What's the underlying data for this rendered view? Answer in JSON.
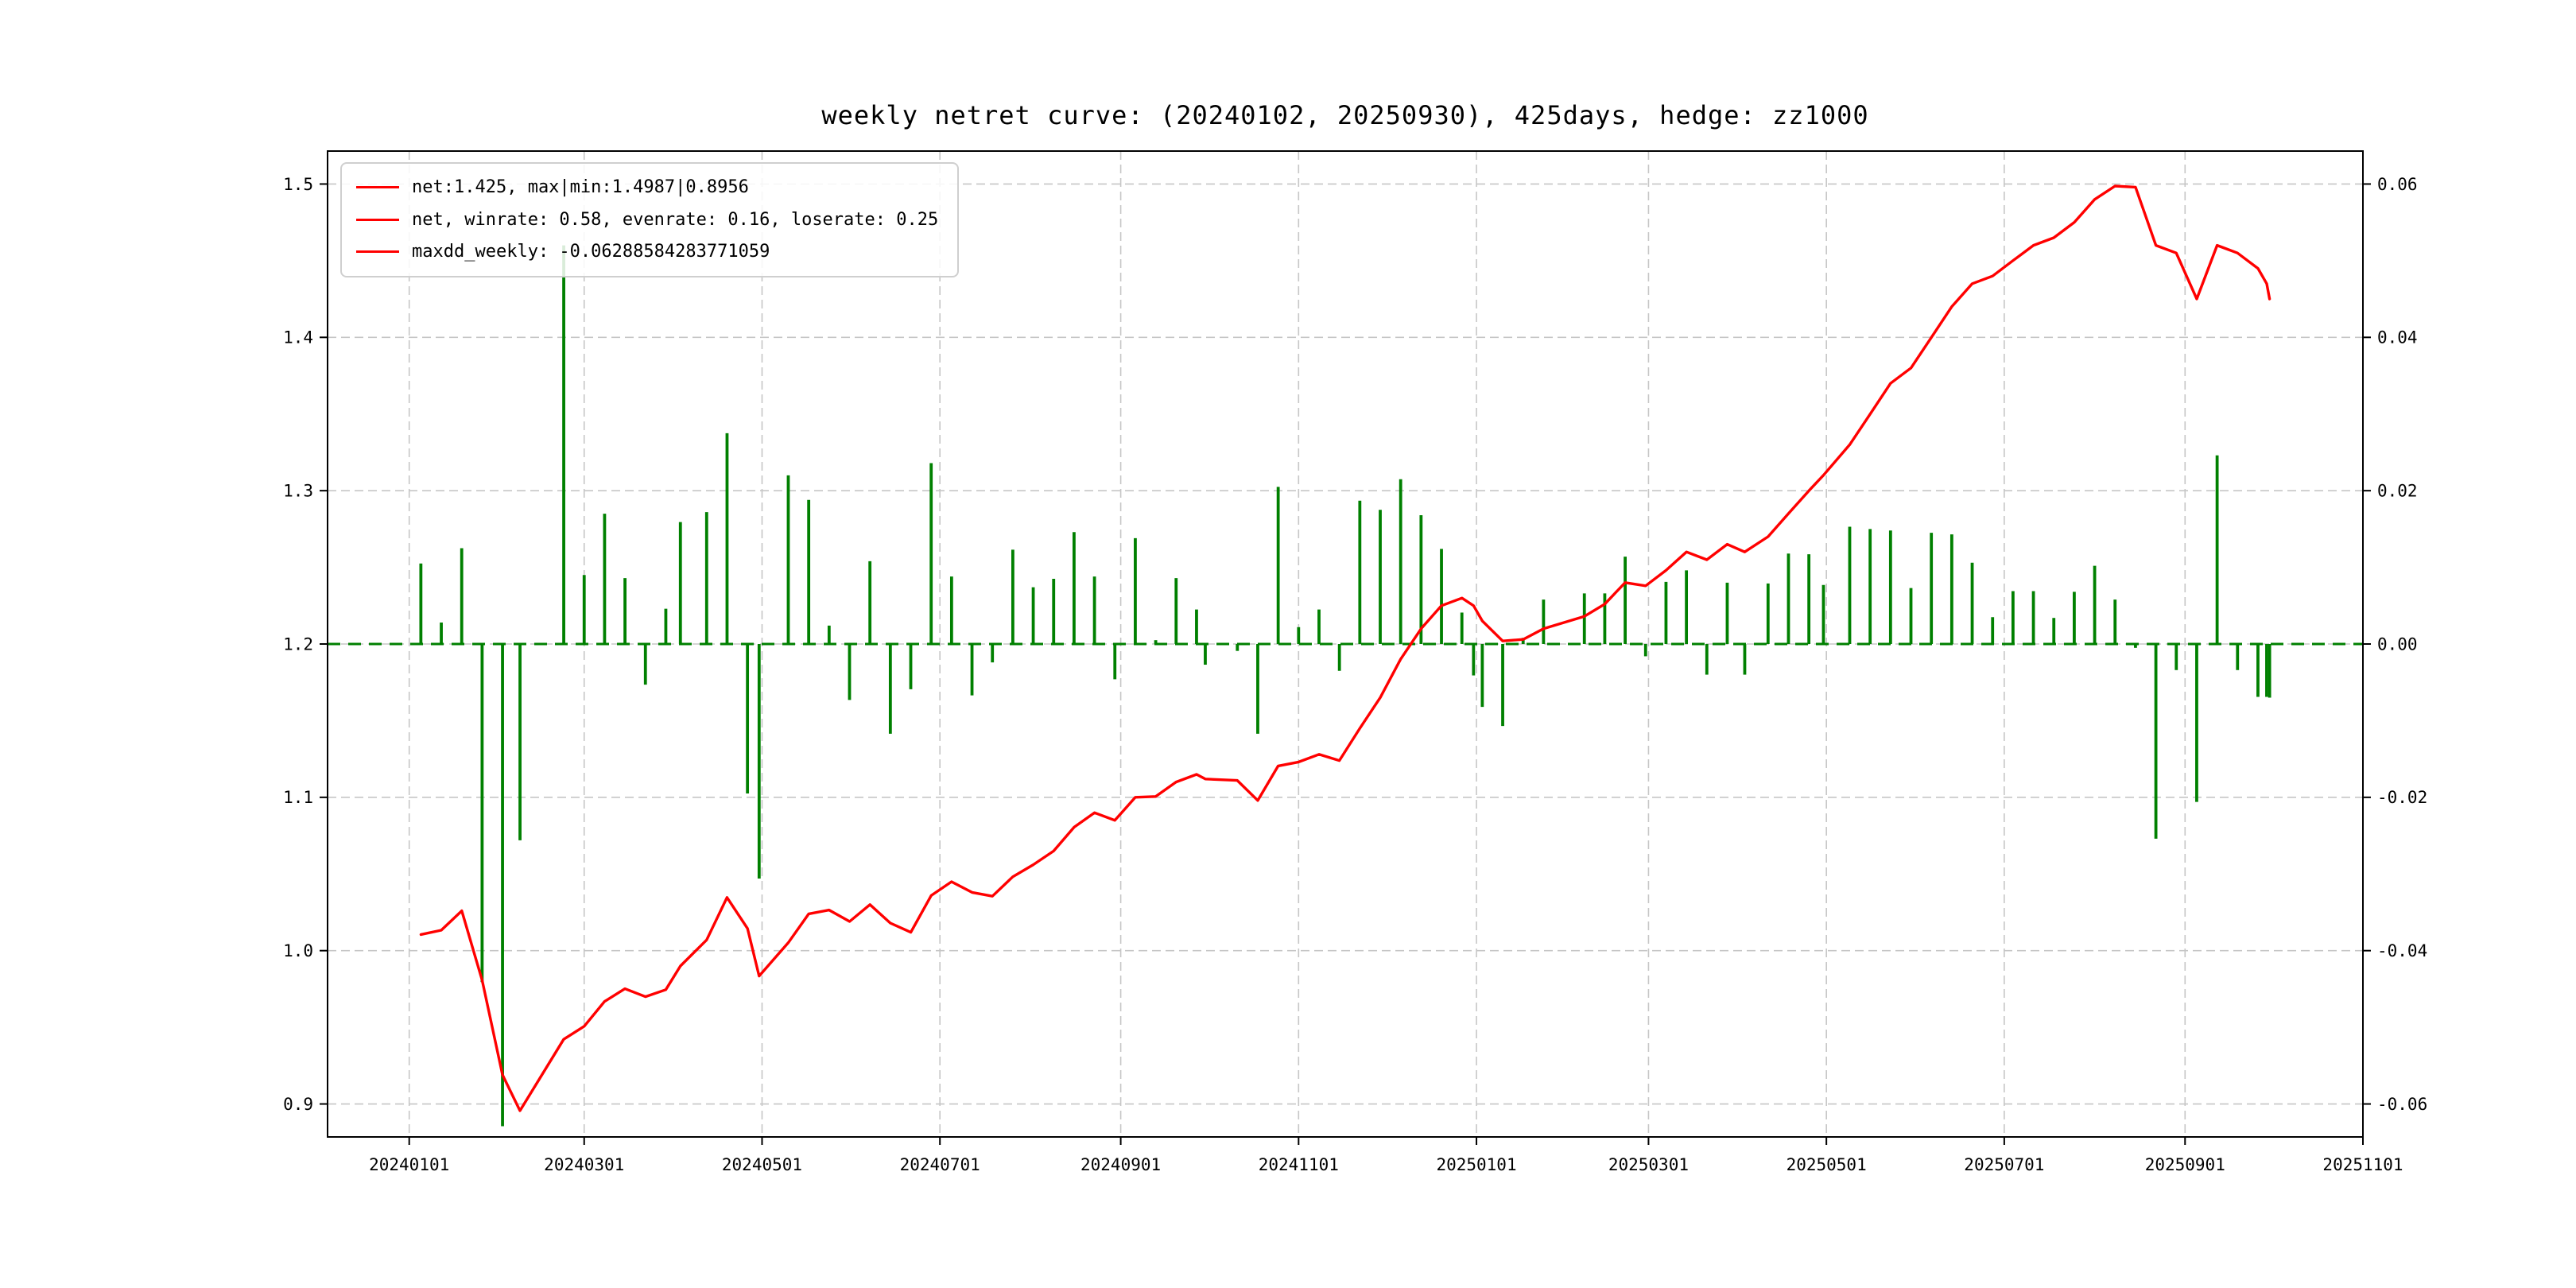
{
  "legend": {
    "items": [
      {
        "label": "net:1.425, max|min:1.4987|0.8956"
      },
      {
        "label": "net, winrate: 0.58, evenrate: 0.16, loserate: 0.25"
      },
      {
        "label": "maxdd_weekly: -0.06288584283771059"
      }
    ]
  },
  "chart_data": {
    "type": "line+bar",
    "title": "weekly netret curve: (20240102, 20250930), 425days, hedge: zz1000",
    "grid": true,
    "legend_position": "upper left",
    "stats": {
      "final_net": 1.425,
      "max_net": 1.4987,
      "min_net": 0.8956,
      "winrate": 0.58,
      "evenrate": 0.16,
      "loserate": 0.25,
      "maxdd_weekly": -0.06288584283771059,
      "period_start": "20240102",
      "period_end": "20250930",
      "days": 425,
      "hedge": "zz1000"
    },
    "x_axis": {
      "domain": [
        "20231204",
        "20251101"
      ],
      "tick_labels": [
        "20240101",
        "20240301",
        "20240501",
        "20240701",
        "20240901",
        "20241101",
        "20250101",
        "20250301",
        "20250501",
        "20250701",
        "20250901",
        "20251101"
      ]
    },
    "left_axis": {
      "lim": [
        0.8785,
        1.5215
      ],
      "ticks": [
        0.9,
        1.0,
        1.1,
        1.2,
        1.3,
        1.4,
        1.5
      ]
    },
    "right_axis": {
      "lim": [
        -0.0643,
        0.0643
      ],
      "ticks": [
        -0.06,
        -0.04,
        -0.02,
        0.0,
        0.02,
        0.04,
        0.06
      ]
    },
    "zero_line": {
      "value": 0,
      "color": "#008000",
      "style": "dashed"
    },
    "x_dates": [
      "20240105",
      "20240112",
      "20240119",
      "20240126",
      "20240202",
      "20240208",
      "20240223",
      "20240301",
      "20240308",
      "20240315",
      "20240322",
      "20240329",
      "20240403",
      "20240412",
      "20240419",
      "20240426",
      "20240430",
      "20240510",
      "20240517",
      "20240524",
      "20240531",
      "20240607",
      "20240614",
      "20240621",
      "20240628",
      "20240705",
      "20240712",
      "20240719",
      "20240726",
      "20240802",
      "20240809",
      "20240816",
      "20240823",
      "20240830",
      "20240906",
      "20240913",
      "20240920",
      "20240927",
      "20240930",
      "20241011",
      "20241018",
      "20241025",
      "20241101",
      "20241108",
      "20241115",
      "20241122",
      "20241129",
      "20241206",
      "20241213",
      "20241220",
      "20241227",
      "20241231",
      "20250103",
      "20250110",
      "20250117",
      "20250124",
      "20250207",
      "20250214",
      "20250221",
      "20250228",
      "20250307",
      "20250314",
      "20250321",
      "20250328",
      "20250403",
      "20250411",
      "20250418",
      "20250425",
      "20250430",
      "20250509",
      "20250516",
      "20250523",
      "20250530",
      "20250606",
      "20250613",
      "20250620",
      "20250627",
      "20250704",
      "20250711",
      "20250718",
      "20250725",
      "20250801",
      "20250808",
      "20250815",
      "20250822",
      "20250829",
      "20250905",
      "20250912",
      "20250919",
      "20250926",
      "20250929",
      "20250930"
    ],
    "series": [
      {
        "name": "net",
        "axis": "left",
        "type": "line",
        "color": "#ff0000",
        "values": [
          1.0105,
          1.0133,
          1.026,
          0.9808,
          0.9191,
          0.8956,
          0.9422,
          0.9507,
          0.9669,
          0.9752,
          0.97,
          0.9745,
          0.99,
          1.007,
          1.0347,
          1.0145,
          0.9835,
          1.0051,
          1.024,
          1.0265,
          1.019,
          1.03,
          1.018,
          1.012,
          1.0359,
          1.045,
          1.038,
          1.0355,
          1.0482,
          1.056,
          1.065,
          1.0805,
          1.09,
          1.085,
          1.1,
          1.1005,
          1.11,
          1.115,
          1.112,
          1.111,
          1.098,
          1.1205,
          1.123,
          1.128,
          1.124,
          1.145,
          1.165,
          1.19,
          1.21,
          1.225,
          1.23,
          1.225,
          1.215,
          1.202,
          1.203,
          1.21,
          1.218,
          1.226,
          1.24,
          1.238,
          1.248,
          1.26,
          1.255,
          1.265,
          1.26,
          1.27,
          1.285,
          1.3,
          1.31,
          1.33,
          1.35,
          1.37,
          1.38,
          1.4,
          1.42,
          1.435,
          1.44,
          1.45,
          1.46,
          1.465,
          1.475,
          1.49,
          1.4987,
          1.498,
          1.46,
          1.455,
          1.425,
          1.46,
          1.455,
          1.445,
          1.435,
          1.425
        ]
      },
      {
        "name": "weekly_return",
        "axis": "right",
        "type": "bar",
        "color": "#008000",
        "values": [
          0.0105,
          0.0028,
          0.0125,
          -0.0441,
          -0.0629,
          -0.0256,
          0.052,
          0.009,
          0.017,
          0.0086,
          -0.0053,
          0.0046,
          0.0159,
          0.0172,
          0.0275,
          -0.0195,
          -0.0306,
          0.022,
          0.0188,
          0.0024,
          -0.0073,
          0.0108,
          -0.0117,
          -0.0059,
          0.0236,
          0.0088,
          -0.0067,
          -0.0024,
          0.0123,
          0.0074,
          0.0085,
          0.0146,
          0.0088,
          -0.0046,
          0.0138,
          0.0005,
          0.0086,
          0.0045,
          -0.0027,
          -0.0009,
          -0.0117,
          0.0205,
          0.0022,
          0.0045,
          -0.0035,
          0.0187,
          0.0175,
          0.0215,
          0.0168,
          0.0124,
          0.0041,
          -0.0041,
          -0.0082,
          -0.0107,
          0.0008,
          0.0058,
          0.0066,
          0.0066,
          0.0114,
          -0.0016,
          0.0081,
          0.0096,
          -0.004,
          0.008,
          -0.004,
          0.0079,
          0.0118,
          0.0117,
          0.0077,
          0.0153,
          0.015,
          0.0148,
          0.0073,
          0.0145,
          0.0143,
          0.0106,
          0.0035,
          0.0069,
          0.0069,
          0.0034,
          0.0068,
          0.0102,
          0.0058,
          -0.0005,
          -0.0254,
          -0.0034,
          -0.0206,
          0.0246,
          -0.0034,
          -0.0069,
          -0.0069,
          -0.007
        ]
      }
    ]
  }
}
